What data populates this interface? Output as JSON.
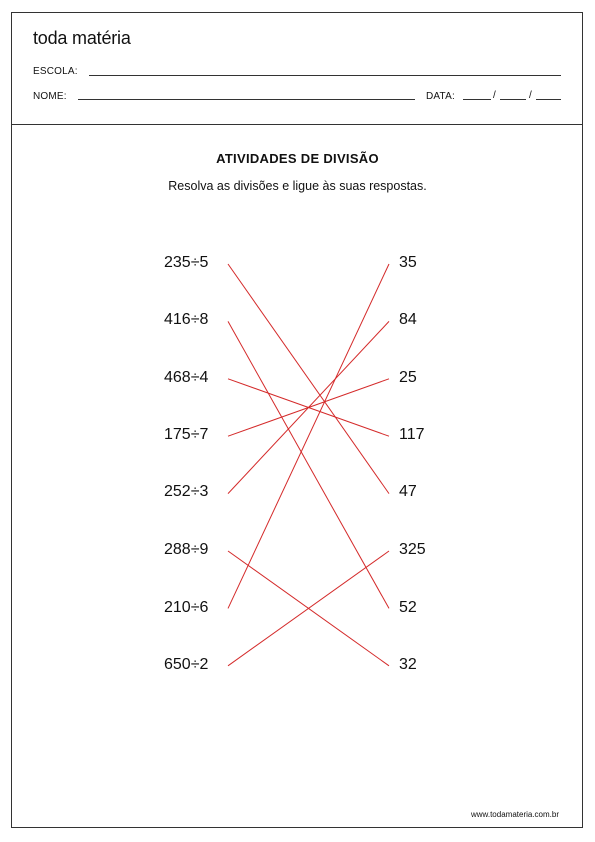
{
  "header": {
    "brand": "toda matéria",
    "school_label": "ESCOLA:",
    "name_label": "NOME:",
    "date_label": "DATA:",
    "date_separator": "/"
  },
  "activity": {
    "title": "ATIVIDADES DE DIVISÃO",
    "instruction": "Resolva as divisões e ligue às suas respostas.",
    "expressions": [
      "235÷5",
      "416÷8",
      "468÷4",
      "175÷7",
      "252÷3",
      "288÷9",
      "210÷6",
      "650÷2"
    ],
    "answers": [
      "35",
      "84",
      "25",
      "117",
      "47",
      "325",
      "52",
      "32"
    ],
    "connections": [
      {
        "expression": 0,
        "answer": 4
      },
      {
        "expression": 1,
        "answer": 6
      },
      {
        "expression": 2,
        "answer": 3
      },
      {
        "expression": 3,
        "answer": 2
      },
      {
        "expression": 4,
        "answer": 1
      },
      {
        "expression": 5,
        "answer": 7
      },
      {
        "expression": 6,
        "answer": 0
      },
      {
        "expression": 7,
        "answer": 5
      }
    ],
    "line_color": "#d42a2a"
  },
  "footer": {
    "url": "www.todamateria.com.br"
  }
}
